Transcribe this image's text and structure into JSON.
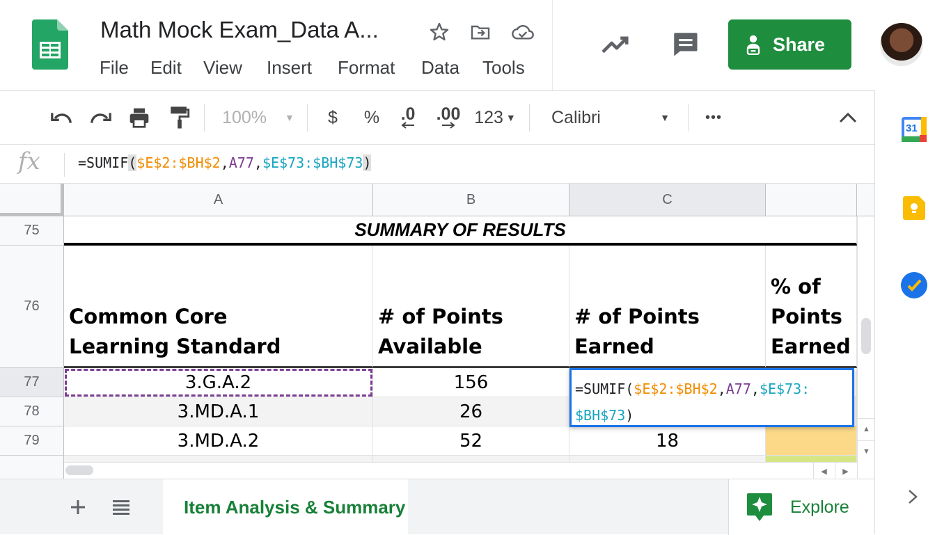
{
  "app": {
    "title": "Math Mock Exam_Data A...",
    "menus": [
      "File",
      "Edit",
      "View",
      "Insert",
      "Format",
      "Data",
      "Tools"
    ],
    "share_label": "Share",
    "icons": [
      "star-icon",
      "move-folder-icon",
      "cloud-saved-icon",
      "activity-trend-icon",
      "comment-icon",
      "lock-people-icon",
      "avatar"
    ]
  },
  "toolbar": {
    "zoom": "100%",
    "currency": "$",
    "percent": "%",
    "dec_decrease": ".0",
    "dec_increase": ".00",
    "number_format": "123",
    "font": "Calibri",
    "more": "•••"
  },
  "formula_bar": {
    "fx": "fx",
    "parts": [
      "=SUMIF",
      "(",
      "$E$2:$BH$2",
      ",",
      "A77",
      ",",
      "$E$73:$BH$73",
      ")"
    ]
  },
  "grid": {
    "columns": [
      "A",
      "B",
      "C"
    ],
    "rows": [
      "75",
      "76",
      "77",
      "78",
      "79"
    ],
    "summary_title": "SUMMARY OF RESULTS",
    "headers": {
      "a": "Common Core Learning Standard",
      "b": "# of Points Available",
      "c": "# of Points Earned",
      "d": "% of Points Earned"
    },
    "data_rows": [
      {
        "standard": "3.G.A.2",
        "available": "156",
        "earned": ""
      },
      {
        "standard": "3.MD.A.1",
        "available": "26",
        "earned": ""
      },
      {
        "standard": "3.MD.A.2",
        "available": "52",
        "earned": "18"
      }
    ],
    "edit_cell": {
      "line1_prefix": "=SUMIF(",
      "line1_ref1": "$E$2:$BH$2",
      "comma1": ",",
      "line1_ref2": "A77",
      "comma2": ",",
      "line1_ref3": "$E$73:",
      "line2_ref3": "$BH$73",
      "line2_suffix": ")"
    }
  },
  "sheets": {
    "active_tab": "Item Analysis & Summary",
    "explore_label": "Explore"
  },
  "side_panel": {
    "calendar_day": "31"
  },
  "colors": {
    "brand_green": "#1e8e3e",
    "selection_blue": "#1a73e8",
    "range_orange": "#f08c00",
    "range_purple": "#7a3d91",
    "range_teal": "#16a5c1",
    "highlight_yellow": "#fcd989"
  }
}
